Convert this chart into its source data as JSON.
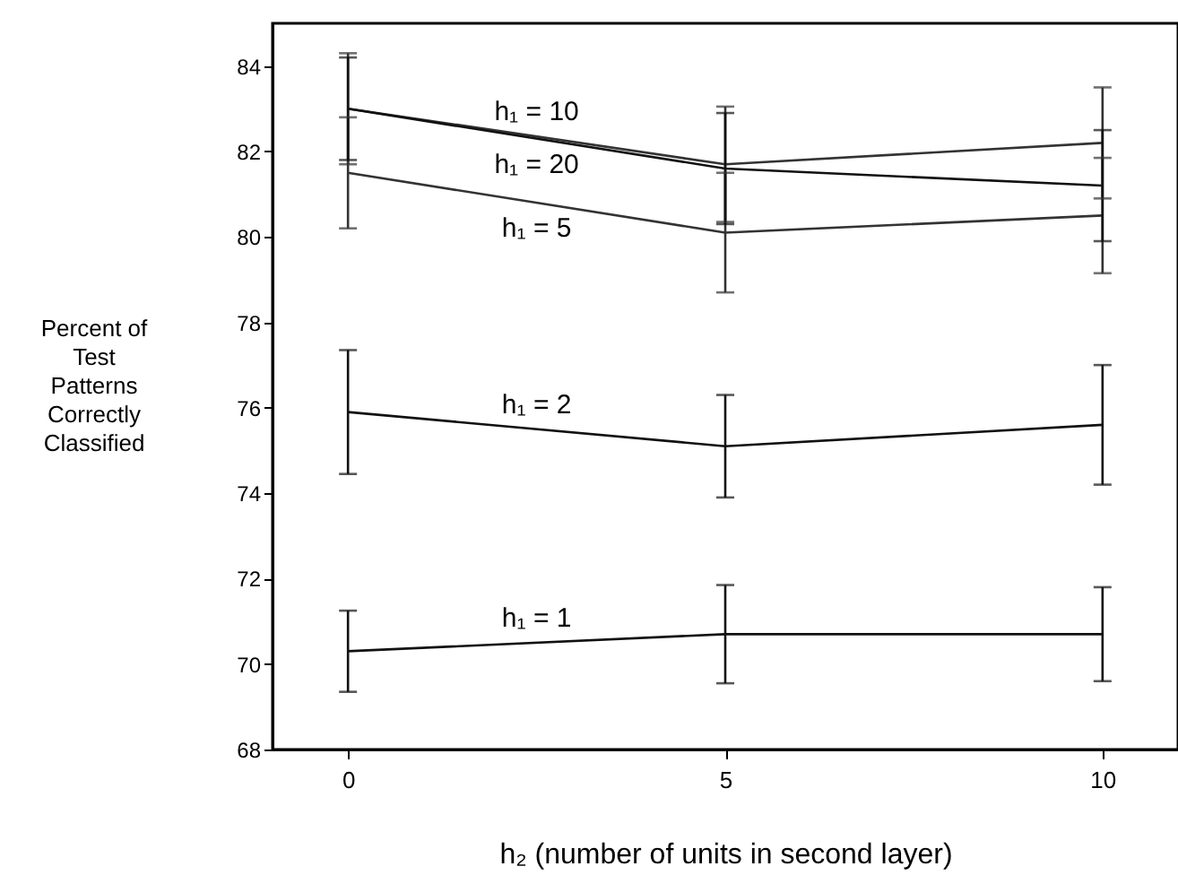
{
  "chart_data": {
    "type": "line",
    "xlabel": "h₂ (number of units in second layer)",
    "ylabel": "Percent of Test Patterns Correctly Classified",
    "x": [
      0,
      5,
      10
    ],
    "xlim": [
      -1,
      11
    ],
    "xticks": [
      0,
      5,
      10
    ],
    "ylim": [
      68,
      85
    ],
    "yticks": [
      68,
      70,
      72,
      74,
      76,
      78,
      80,
      82,
      84
    ],
    "grid": false,
    "marker": "none",
    "line_style": "solid",
    "series": [
      {
        "name": "h₁ = 1",
        "color": "#111111",
        "values": [
          70.3,
          70.7,
          70.7
        ],
        "errors": [
          0.95,
          1.15,
          1.1
        ]
      },
      {
        "name": "h₁ = 2",
        "color": "#111111",
        "values": [
          75.9,
          75.1,
          75.6
        ],
        "errors": [
          1.45,
          1.2,
          1.4
        ]
      },
      {
        "name": "h₁ = 5",
        "color": "#333333",
        "values": [
          81.5,
          80.1,
          80.5
        ],
        "errors": [
          1.3,
          1.4,
          1.35
        ]
      },
      {
        "name": "h₁ = 10",
        "color": "#333333",
        "values": [
          83.0,
          81.7,
          82.2
        ],
        "errors": [
          1.3,
          1.35,
          1.3
        ]
      },
      {
        "name": "h₁ = 20",
        "color": "#111111",
        "values": [
          83.0,
          81.6,
          81.2
        ],
        "errors": [
          1.2,
          1.3,
          1.3
        ]
      }
    ]
  }
}
